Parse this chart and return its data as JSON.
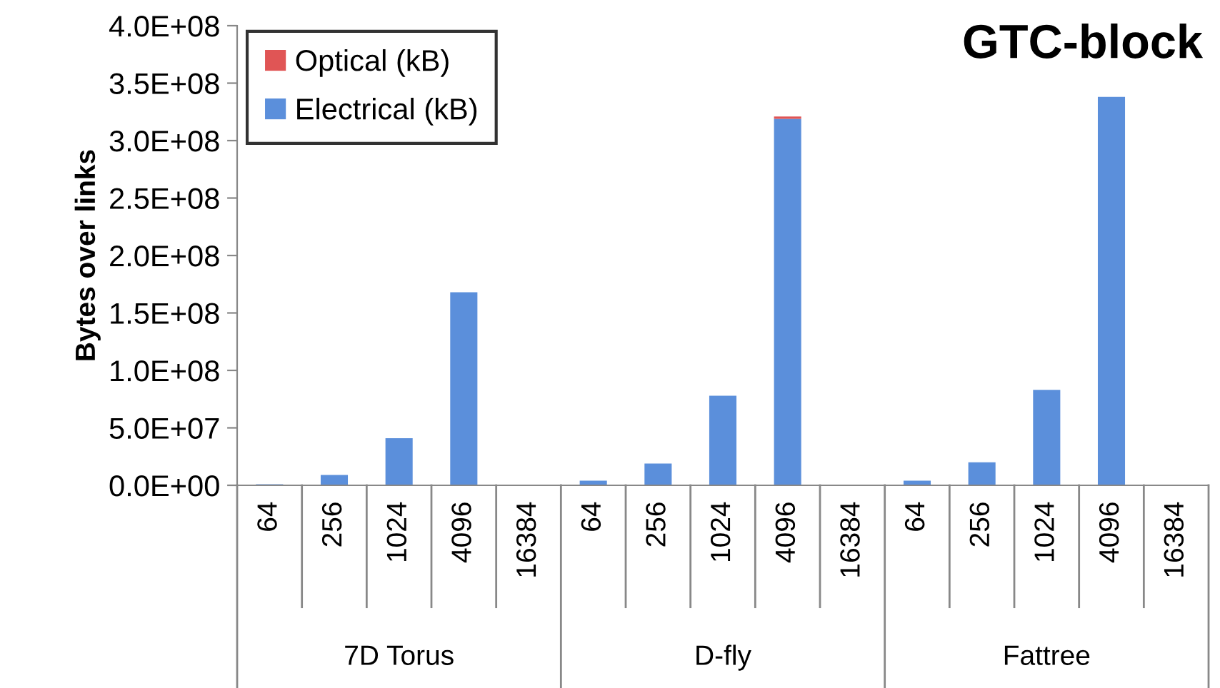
{
  "chart_data": {
    "type": "bar",
    "stacked": true,
    "title": "GTC-block",
    "ylabel": "Bytes over links",
    "categories": [
      "64",
      "256",
      "1024",
      "4096",
      "16384",
      "64",
      "256",
      "1024",
      "4096",
      "16384",
      "64",
      "256",
      "1024",
      "4096",
      "16384"
    ],
    "annotations": [
      "7D Torus",
      "D-fly",
      "Fattree"
    ],
    "series": [
      {
        "name": "Electrical (kB)",
        "color": "#5b8fdb",
        "values": [
          1000000,
          9000000,
          41000000,
          168000000,
          null,
          4000000,
          19000000,
          78000000,
          319000000,
          null,
          4000000,
          20000000,
          83000000,
          338000000,
          null
        ]
      },
      {
        "name": "Optical (kB)",
        "color": "#e05555",
        "values": [
          0,
          0,
          0,
          0,
          null,
          0,
          0,
          0,
          2000000,
          null,
          0,
          0,
          0,
          0,
          null
        ]
      }
    ],
    "ylim": [
      0,
      400000000
    ],
    "yticks": [
      {
        "value": 0,
        "label": "0.0E+00"
      },
      {
        "value": 50000000,
        "label": "5.0E+07"
      },
      {
        "value": 100000000,
        "label": "1.0E+08"
      },
      {
        "value": 150000000,
        "label": "1.5E+08"
      },
      {
        "value": 200000000,
        "label": "2.0E+08"
      },
      {
        "value": 250000000,
        "label": "2.5E+08"
      },
      {
        "value": 300000000,
        "label": "3.0E+08"
      },
      {
        "value": 350000000,
        "label": "3.5E+08"
      },
      {
        "value": 400000000,
        "label": "4.0E+08"
      }
    ],
    "legend": "top left",
    "grid": false
  }
}
